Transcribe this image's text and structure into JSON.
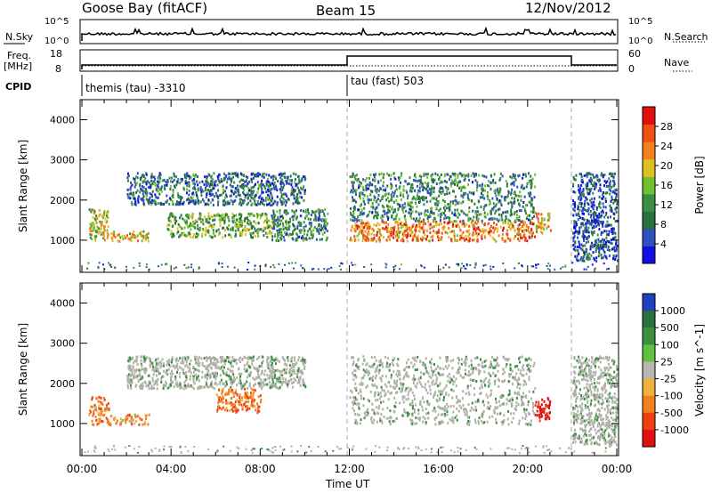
{
  "header": {
    "title": "Goose Bay (fitACF)",
    "beam": "Beam 15",
    "date": "12/Nov/2012"
  },
  "status_panels": {
    "nsky_label": "N.Sky",
    "nsky_ticks": [
      "10^5",
      "10^0"
    ],
    "nsearch_label": "N.Search",
    "nsearch_ticks": [
      "10^5",
      "10^0"
    ],
    "freq_label": "Freq.",
    "freq_unit": "[MHz]",
    "freq_ticks": [
      "18",
      "8"
    ],
    "nave_label": "Nave",
    "nave_ticks": [
      "60",
      "0"
    ],
    "cpid_label": "CPID",
    "cpid_entries": [
      "themis (tau) -3310",
      "tau (fast) 503"
    ]
  },
  "colors": {
    "power": [
      "#1010e0",
      "#3050c0",
      "#2a7040",
      "#3a9040",
      "#70c030",
      "#e0c020",
      "#f08020",
      "#f05010",
      "#e01010"
    ],
    "velocity": [
      "#e01010",
      "#f04010",
      "#f08020",
      "#f0b040",
      "#b8b8b0",
      "#60c040",
      "#3a9040",
      "#2a7040",
      "#2040c0"
    ],
    "ground_scatter": "#b0b0a8"
  },
  "chart_data": [
    {
      "type": "heatmap",
      "title": "Power",
      "xlabel": "",
      "ylabel": "Slant Range [km]",
      "x_ticks": [
        "00:00",
        "04:00",
        "08:00",
        "12:00",
        "16:00",
        "20:00",
        "00:00"
      ],
      "y_ticks": [
        "1000",
        "2000",
        "3000",
        "4000"
      ],
      "ylim": [
        200,
        4500
      ],
      "colorbar_label": "Power [dB]",
      "colorbar_ticks": [
        "4",
        "8",
        "12",
        "16",
        "20",
        "24",
        "28"
      ],
      "colorbar_range": [
        0,
        32
      ],
      "features": [
        {
          "t": [
            0.3,
            1.2
          ],
          "r": [
            1000,
            1800
          ],
          "level": 18
        },
        {
          "t": [
            1.2,
            3.0
          ],
          "r": [
            1000,
            1250
          ],
          "level": 20
        },
        {
          "t": [
            2.0,
            10.0
          ],
          "r": [
            1900,
            2700
          ],
          "level": 8
        },
        {
          "t": [
            3.8,
            8.5
          ],
          "r": [
            1100,
            1700
          ],
          "level": 14
        },
        {
          "t": [
            8.5,
            11.0
          ],
          "r": [
            1000,
            1800
          ],
          "level": 10
        },
        {
          "t": [
            12.0,
            20.3
          ],
          "r": [
            1000,
            1500
          ],
          "level": 24
        },
        {
          "t": [
            12.0,
            20.3
          ],
          "r": [
            1500,
            2700
          ],
          "level": 10
        },
        {
          "t": [
            20.3,
            21.0
          ],
          "r": [
            1200,
            1700
          ],
          "level": 22
        },
        {
          "t": [
            22.0,
            24.0
          ],
          "r": [
            500,
            2700
          ],
          "level": 6
        }
      ]
    },
    {
      "type": "heatmap",
      "title": "Velocity",
      "xlabel": "Time UT",
      "ylabel": "Slant Range [km]",
      "x_ticks": [
        "00:00",
        "04:00",
        "08:00",
        "12:00",
        "16:00",
        "20:00",
        "00:00"
      ],
      "y_ticks": [
        "1000",
        "2000",
        "3000",
        "4000"
      ],
      "ylim": [
        200,
        4500
      ],
      "colorbar_label": "Velocity [m s^-1]",
      "colorbar_ticks": [
        "1000",
        "500",
        "100",
        "25",
        "-25",
        "-100",
        "-500",
        "-1000"
      ],
      "features": [
        {
          "t": [
            0.3,
            1.2
          ],
          "r": [
            1000,
            1700
          ],
          "velocity": -200
        },
        {
          "t": [
            1.2,
            3.0
          ],
          "r": [
            1000,
            1250
          ],
          "velocity": -150
        },
        {
          "t": [
            2.0,
            10.0
          ],
          "r": [
            1900,
            2700
          ],
          "velocity": 0
        },
        {
          "t": [
            6.0,
            8.0
          ],
          "r": [
            1300,
            1900
          ],
          "velocity": -250
        },
        {
          "t": [
            12.0,
            20.3
          ],
          "r": [
            1000,
            2700
          ],
          "velocity": 0
        },
        {
          "t": [
            20.3,
            21.0
          ],
          "r": [
            1100,
            1700
          ],
          "velocity": -600
        },
        {
          "t": [
            22.0,
            24.0
          ],
          "r": [
            500,
            2700
          ],
          "velocity": 0
        }
      ]
    }
  ]
}
